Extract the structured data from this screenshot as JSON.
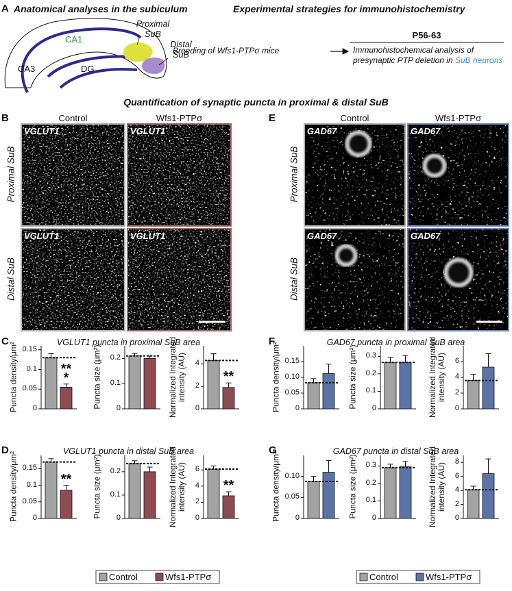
{
  "panel_a": {
    "label": "A",
    "left_title": "Anatomical analyses in the subiculum",
    "right_title": "Experimental strategies for immunohistochemistry",
    "regions": {
      "ca1": "CA1",
      "ca3": "CA3",
      "dg": "DG",
      "proximal": "Proximal SuB",
      "distal": "Distal SuB"
    },
    "breeding": "Breeding of Wfs1-PTPσ mice",
    "age": "P56-63",
    "analysis": "Immunohistochemical analysis of presynaptic PTP deletion in",
    "analysis_target": "SuB neurons"
  },
  "section_title": "Quantification of synaptic puncta in proximal & distal SuB",
  "panel_b": {
    "label": "B",
    "columns": [
      "Control",
      "Wfs1-PTPσ"
    ],
    "rows": [
      "Proximal SuB",
      "Distal SuB"
    ],
    "stain": "VGLUT1"
  },
  "panel_e": {
    "label": "E",
    "columns": [
      "Control",
      "Wfs1-PTPσ"
    ],
    "rows": [
      "Proximal SuB",
      "Distal SuB"
    ],
    "stain": "GAD67"
  },
  "chart_rows": [
    {
      "label": "C",
      "title": "VGLUT1 puncta in proximal SuB area"
    },
    {
      "label": "D",
      "title": "VGLUT1 puncta in distal SuB area"
    },
    {
      "label": "F",
      "title": "GAD67 puncta in proximal SuB area"
    },
    {
      "label": "G",
      "title": "GAD67 puncta in distal SuB area"
    }
  ],
  "chart_data": [
    {
      "type": "bar",
      "ylabel": "Puncta density/μm²",
      "values": [
        0.13,
        0.055
      ],
      "errors": [
        0.01,
        0.008
      ],
      "colors": [
        "#a3a3a3",
        "#8e4b52"
      ],
      "ylim": [
        0,
        0.16
      ],
      "yticks": [
        0,
        0.05,
        0.1,
        0.15
      ],
      "annotation": "***",
      "reference_line": true
    },
    {
      "type": "bar",
      "ylabel": "Puncta size (μm²)",
      "values": [
        0.21,
        0.2
      ],
      "errors": [
        0.01,
        0.01
      ],
      "colors": [
        "#a3a3a3",
        "#8e4b52"
      ],
      "ylim": [
        0,
        0.25
      ],
      "yticks": [
        0,
        0.1,
        0.2
      ],
      "reference_line": true
    },
    {
      "type": "bar",
      "ylabel": "Normalized Integrated intensity (AU)",
      "values": [
        4.3,
        1.9
      ],
      "errors": [
        0.6,
        0.4
      ],
      "colors": [
        "#a3a3a3",
        "#8e4b52"
      ],
      "ylim": [
        0,
        5.6
      ],
      "yticks": [
        0,
        2,
        4
      ],
      "annotation": "**",
      "reference_line": true
    },
    {
      "type": "bar",
      "ylabel": "Puncta density/μm²",
      "values": [
        0.17,
        0.085
      ],
      "errors": [
        0.01,
        0.015
      ],
      "colors": [
        "#a3a3a3",
        "#8e4b52"
      ],
      "ylim": [
        0,
        0.19
      ],
      "yticks": [
        0,
        0.05,
        0.1,
        0.15
      ],
      "annotation": "**",
      "reference_line": true
    },
    {
      "type": "bar",
      "ylabel": "Puncta size (μm²)",
      "values": [
        0.235,
        0.2
      ],
      "errors": [
        0.012,
        0.02
      ],
      "colors": [
        "#a3a3a3",
        "#8e4b52"
      ],
      "ylim": [
        0,
        0.27
      ],
      "yticks": [
        0,
        0.1,
        0.2
      ],
      "reference_line": true
    },
    {
      "type": "bar",
      "ylabel": "Normalized Integrated intensity (AU)",
      "values": [
        6.1,
        2.8
      ],
      "errors": [
        0.4,
        0.5
      ],
      "colors": [
        "#a3a3a3",
        "#8e4b52"
      ],
      "ylim": [
        0,
        7.8
      ],
      "yticks": [
        0,
        2,
        4,
        6
      ],
      "annotation": "**",
      "reference_line": true
    },
    {
      "type": "bar",
      "ylabel": "Puncta density/μm²",
      "values": [
        0.083,
        0.112
      ],
      "errors": [
        0.013,
        0.03
      ],
      "colors": [
        "#a3a3a3",
        "#5b74a8"
      ],
      "ylim": [
        0,
        0.2
      ],
      "yticks": [
        0,
        0.05,
        {
          "value": 0.1,
          "label": "0.10"
        },
        0.15
      ],
      "reference_line": true
    },
    {
      "type": "bar",
      "ylabel": "Puncta size (μm²)",
      "values": [
        0.265,
        0.265
      ],
      "errors": [
        0.03,
        0.04
      ],
      "colors": [
        "#a3a3a3",
        "#5b74a8"
      ],
      "ylim": [
        0,
        0.36
      ],
      "yticks": [
        0,
        0.1,
        0.2,
        0.3
      ],
      "reference_line": true
    },
    {
      "type": "bar",
      "ylabel": "Normalized Integrated intensity (AU)",
      "values": [
        3.6,
        5.3
      ],
      "errors": [
        0.8,
        1.7
      ],
      "colors": [
        "#a3a3a3",
        "#5b74a8"
      ],
      "ylim": [
        0,
        8
      ],
      "yticks": [
        0,
        2,
        4,
        6
      ],
      "reference_line": true
    },
    {
      "type": "bar",
      "ylabel": "Puncta density/μm²",
      "values": [
        0.088,
        0.11
      ],
      "errors": [
        0.012,
        0.028
      ],
      "colors": [
        "#a3a3a3",
        "#5b74a8"
      ],
      "ylim": [
        0,
        0.15
      ],
      "yticks": [
        0,
        0.05,
        {
          "value": 0.1,
          "label": "0.10"
        }
      ],
      "reference_line": true
    },
    {
      "type": "bar",
      "ylabel": "Puncta size (μm²)",
      "values": [
        0.29,
        0.295
      ],
      "errors": [
        0.02,
        0.03
      ],
      "colors": [
        "#a3a3a3",
        "#5b74a8"
      ],
      "ylim": [
        0,
        0.36
      ],
      "yticks": [
        0,
        0.1,
        0.2,
        0.3
      ],
      "reference_line": true
    },
    {
      "type": "bar",
      "ylabel": "Normalized Integrated intensity (AU)",
      "values": [
        4.1,
        6.4
      ],
      "errors": [
        0.5,
        2.1
      ],
      "colors": [
        "#a3a3a3",
        "#5b74a8"
      ],
      "ylim": [
        0,
        9
      ],
      "yticks": [
        0,
        2,
        4,
        6,
        8
      ],
      "reference_line": true
    }
  ],
  "legends": [
    {
      "items": [
        {
          "name": "Control",
          "color": "#a3a3a3"
        },
        {
          "name": "Wfs1-PTPσ",
          "color": "#8e4b52"
        }
      ]
    },
    {
      "items": [
        {
          "name": "Control",
          "color": "#a3a3a3"
        },
        {
          "name": "Wfs1-PTPσ",
          "color": "#5b74a8"
        }
      ]
    }
  ]
}
